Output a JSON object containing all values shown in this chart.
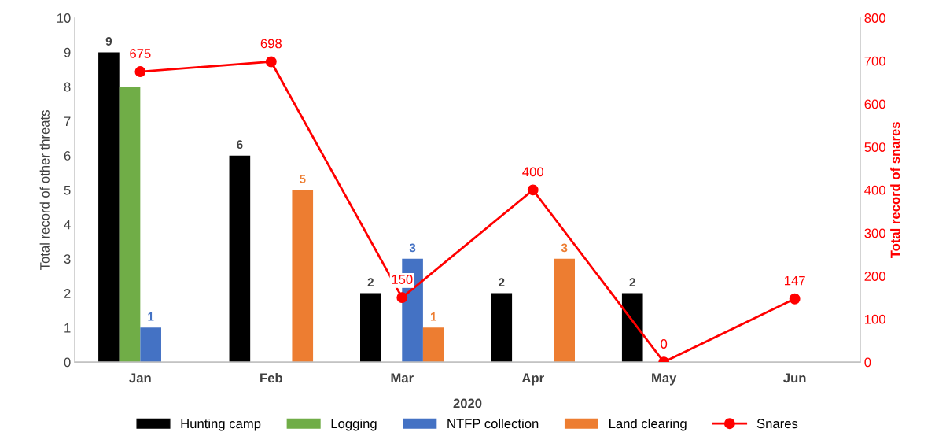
{
  "chart_data": {
    "type": "bar",
    "xlabel": "2020",
    "ylabel": "Total record of other threats",
    "y2label": "Total record of snares",
    "categories": [
      "Jan",
      "Feb",
      "Mar",
      "Apr",
      "May",
      "Jun"
    ],
    "series": [
      {
        "name": "Hunting camp",
        "color": "#000000",
        "values": [
          9,
          6,
          2,
          2,
          2,
          null
        ],
        "value_labels": [
          "9",
          "6",
          "2",
          "2",
          "2",
          null
        ]
      },
      {
        "name": "Logging",
        "color": "#70ad47",
        "values": [
          8,
          null,
          null,
          null,
          null,
          null
        ],
        "value_labels": [
          null,
          null,
          null,
          null,
          null,
          null
        ]
      },
      {
        "name": "NTFP collection",
        "color": "#4472c4",
        "values": [
          1,
          null,
          3,
          null,
          null,
          null
        ],
        "value_labels": [
          "1",
          null,
          "3",
          null,
          null,
          null
        ]
      },
      {
        "name": "Land clearing",
        "color": "#ed7d31",
        "values": [
          null,
          5,
          1,
          3,
          null,
          null
        ],
        "value_labels": [
          null,
          "5",
          "1",
          "3",
          null,
          null
        ]
      },
      {
        "name": "Snares",
        "type": "line",
        "axis": "y2",
        "color": "#ff0000",
        "marker": "circle",
        "values": [
          675,
          698,
          150,
          400,
          0,
          147
        ],
        "value_labels": [
          "675",
          "698",
          "150",
          "400",
          "0",
          "147"
        ]
      }
    ],
    "ylim": [
      0,
      10
    ],
    "yticks": [
      0,
      1,
      2,
      3,
      4,
      5,
      6,
      7,
      8,
      9,
      10
    ],
    "y2lim": [
      0,
      800
    ],
    "y2ticks": [
      0,
      100,
      200,
      300,
      400,
      500,
      600,
      700,
      800
    ],
    "grid": false,
    "legend": "bottom"
  }
}
